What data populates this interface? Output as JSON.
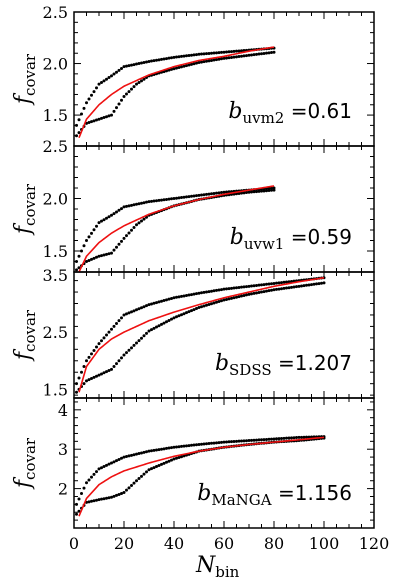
{
  "colors": {
    "fit": "#ee1111",
    "data": "#000000"
  },
  "xlabel": {
    "main": "N",
    "sub": "bin"
  },
  "chart_data": [
    {
      "type": "line",
      "ylabel": {
        "main": "f",
        "sub": "covar"
      },
      "annotation": {
        "var": "b",
        "sub": "uvm2",
        "eq": " =",
        "value": "0.61"
      },
      "xlim": [
        0,
        120
      ],
      "ylim": [
        1.2,
        2.5
      ],
      "xticks": [
        0,
        20,
        40,
        60,
        80,
        100,
        120
      ],
      "yticks": [
        "1.5",
        "2.0",
        "2.5"
      ],
      "ytick_values": [
        1.5,
        2.0,
        2.5
      ],
      "series": [
        {
          "role": "upper",
          "style": "dots",
          "x": [
            1,
            5,
            10,
            15,
            20,
            30,
            40,
            50,
            60,
            70,
            80
          ],
          "y": [
            1.4,
            1.62,
            1.8,
            1.88,
            1.97,
            2.02,
            2.06,
            2.09,
            2.11,
            2.13,
            2.15
          ]
        },
        {
          "role": "lower",
          "style": "dots",
          "x": [
            1,
            5,
            10,
            15,
            20,
            25,
            30,
            40,
            50,
            60,
            70,
            80
          ],
          "y": [
            1.3,
            1.42,
            1.46,
            1.5,
            1.68,
            1.8,
            1.88,
            1.95,
            2.01,
            2.05,
            2.08,
            2.11
          ]
        },
        {
          "role": "fit",
          "style": "line",
          "x": [
            2,
            5,
            10,
            15,
            20,
            30,
            40,
            50,
            60,
            70,
            80
          ],
          "y": [
            1.28,
            1.46,
            1.6,
            1.7,
            1.78,
            1.89,
            1.97,
            2.03,
            2.07,
            2.12,
            2.16
          ]
        }
      ]
    },
    {
      "type": "line",
      "ylabel": {
        "main": "f",
        "sub": "covar"
      },
      "annotation": {
        "var": "b",
        "sub": "uvw1",
        "eq": " =",
        "value": "0.59"
      },
      "xlim": [
        0,
        120
      ],
      "ylim": [
        1.3,
        2.5
      ],
      "xticks": [
        0,
        20,
        40,
        60,
        80,
        100,
        120
      ],
      "yticks": [
        "1.5",
        "2.0",
        "2.5"
      ],
      "ytick_values": [
        1.5,
        2.0,
        2.5
      ],
      "series": [
        {
          "role": "upper",
          "style": "dots",
          "x": [
            1,
            5,
            10,
            15,
            20,
            30,
            40,
            50,
            60,
            70,
            80
          ],
          "y": [
            1.4,
            1.6,
            1.77,
            1.84,
            1.92,
            1.97,
            2.0,
            2.03,
            2.06,
            2.08,
            2.1
          ]
        },
        {
          "role": "lower",
          "style": "dots",
          "x": [
            1,
            5,
            10,
            15,
            20,
            25,
            30,
            40,
            50,
            60,
            70,
            80
          ],
          "y": [
            1.32,
            1.4,
            1.45,
            1.48,
            1.62,
            1.75,
            1.84,
            1.93,
            1.99,
            2.03,
            2.06,
            2.08
          ]
        },
        {
          "role": "fit",
          "style": "line",
          "x": [
            2,
            5,
            10,
            15,
            20,
            30,
            40,
            50,
            60,
            70,
            80
          ],
          "y": [
            1.3,
            1.45,
            1.58,
            1.67,
            1.74,
            1.85,
            1.93,
            1.99,
            2.04,
            2.08,
            2.12
          ]
        }
      ]
    },
    {
      "type": "line",
      "ylabel": {
        "main": "f",
        "sub": "covar"
      },
      "annotation": {
        "var": "b",
        "sub": "SDSS",
        "eq": " =",
        "value": "1.207"
      },
      "xlim": [
        0,
        120
      ],
      "ylim": [
        1.35,
        3.55
      ],
      "xticks": [
        0,
        20,
        40,
        60,
        80,
        100,
        120
      ],
      "yticks": [
        "1.5",
        "2.5",
        "3.5"
      ],
      "ytick_values": [
        1.5,
        2.5,
        3.5
      ],
      "series": [
        {
          "role": "upper",
          "style": "dots",
          "x": [
            1,
            5,
            10,
            15,
            20,
            30,
            40,
            50,
            60,
            70,
            80,
            90,
            100
          ],
          "y": [
            1.6,
            2.0,
            2.3,
            2.55,
            2.8,
            2.98,
            3.1,
            3.18,
            3.25,
            3.3,
            3.35,
            3.4,
            3.45
          ]
        },
        {
          "role": "lower",
          "style": "dots",
          "x": [
            1,
            5,
            10,
            15,
            20,
            30,
            40,
            50,
            60,
            70,
            80,
            90,
            100
          ],
          "y": [
            1.45,
            1.65,
            1.75,
            1.85,
            2.1,
            2.52,
            2.75,
            2.93,
            3.06,
            3.16,
            3.24,
            3.3,
            3.36
          ]
        },
        {
          "role": "fit",
          "style": "line",
          "x": [
            2,
            5,
            10,
            15,
            20,
            30,
            40,
            50,
            60,
            70,
            80,
            90,
            100
          ],
          "y": [
            1.45,
            1.9,
            2.2,
            2.38,
            2.5,
            2.7,
            2.85,
            2.98,
            3.1,
            3.2,
            3.3,
            3.38,
            3.45
          ]
        }
      ]
    },
    {
      "type": "line",
      "ylabel": {
        "main": "f",
        "sub": "covar"
      },
      "annotation": {
        "var": "b",
        "sub": "MaNGA",
        "eq": " =",
        "value": "1.156"
      },
      "xlim": [
        0,
        120
      ],
      "ylim": [
        1.0,
        4.3
      ],
      "xticks": [
        0,
        20,
        40,
        60,
        80,
        100,
        120
      ],
      "yticks": [
        "2",
        "3",
        "4"
      ],
      "ytick_values": [
        2,
        3,
        4
      ],
      "series": [
        {
          "role": "upper",
          "style": "dots",
          "x": [
            1,
            5,
            10,
            15,
            20,
            30,
            40,
            50,
            60,
            70,
            80,
            90,
            100
          ],
          "y": [
            1.6,
            2.15,
            2.5,
            2.65,
            2.8,
            2.95,
            3.05,
            3.12,
            3.18,
            3.22,
            3.26,
            3.3,
            3.32
          ]
        },
        {
          "role": "lower",
          "style": "dots",
          "x": [
            1,
            5,
            10,
            15,
            20,
            25,
            30,
            40,
            50,
            60,
            70,
            80,
            90,
            100
          ],
          "y": [
            1.35,
            1.65,
            1.72,
            1.78,
            1.9,
            2.2,
            2.48,
            2.75,
            2.95,
            3.05,
            3.12,
            3.18,
            3.22,
            3.28
          ]
        },
        {
          "role": "fit",
          "style": "line",
          "x": [
            2,
            5,
            10,
            15,
            20,
            30,
            40,
            50,
            60,
            70,
            80,
            90,
            100
          ],
          "y": [
            1.3,
            1.75,
            2.1,
            2.3,
            2.45,
            2.65,
            2.82,
            2.95,
            3.05,
            3.12,
            3.18,
            3.24,
            3.3
          ]
        }
      ]
    }
  ]
}
